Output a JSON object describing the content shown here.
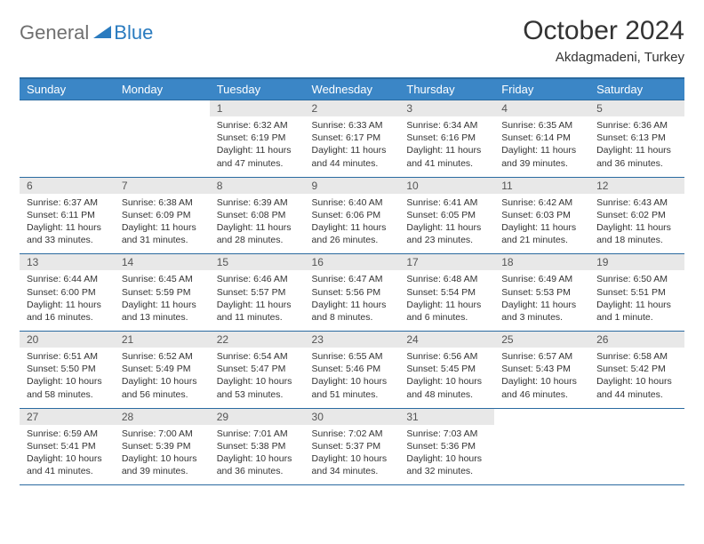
{
  "logo": {
    "part1": "General",
    "part2": "Blue"
  },
  "title": "October 2024",
  "location": "Akdagmadeni, Turkey",
  "colors": {
    "header_bg": "#3b86c6",
    "header_border": "#2a6aa0",
    "daynum_bg": "#e8e8e8",
    "text": "#333333",
    "logo_gray": "#6f6f6f",
    "logo_blue": "#2a7bbf"
  },
  "weekdays": [
    "Sunday",
    "Monday",
    "Tuesday",
    "Wednesday",
    "Thursday",
    "Friday",
    "Saturday"
  ],
  "weeks": [
    [
      {
        "empty": true
      },
      {
        "empty": true
      },
      {
        "n": "1",
        "sr": "6:32 AM",
        "ss": "6:19 PM",
        "dl": "11 hours and 47 minutes."
      },
      {
        "n": "2",
        "sr": "6:33 AM",
        "ss": "6:17 PM",
        "dl": "11 hours and 44 minutes."
      },
      {
        "n": "3",
        "sr": "6:34 AM",
        "ss": "6:16 PM",
        "dl": "11 hours and 41 minutes."
      },
      {
        "n": "4",
        "sr": "6:35 AM",
        "ss": "6:14 PM",
        "dl": "11 hours and 39 minutes."
      },
      {
        "n": "5",
        "sr": "6:36 AM",
        "ss": "6:13 PM",
        "dl": "11 hours and 36 minutes."
      }
    ],
    [
      {
        "n": "6",
        "sr": "6:37 AM",
        "ss": "6:11 PM",
        "dl": "11 hours and 33 minutes."
      },
      {
        "n": "7",
        "sr": "6:38 AM",
        "ss": "6:09 PM",
        "dl": "11 hours and 31 minutes."
      },
      {
        "n": "8",
        "sr": "6:39 AM",
        "ss": "6:08 PM",
        "dl": "11 hours and 28 minutes."
      },
      {
        "n": "9",
        "sr": "6:40 AM",
        "ss": "6:06 PM",
        "dl": "11 hours and 26 minutes."
      },
      {
        "n": "10",
        "sr": "6:41 AM",
        "ss": "6:05 PM",
        "dl": "11 hours and 23 minutes."
      },
      {
        "n": "11",
        "sr": "6:42 AM",
        "ss": "6:03 PM",
        "dl": "11 hours and 21 minutes."
      },
      {
        "n": "12",
        "sr": "6:43 AM",
        "ss": "6:02 PM",
        "dl": "11 hours and 18 minutes."
      }
    ],
    [
      {
        "n": "13",
        "sr": "6:44 AM",
        "ss": "6:00 PM",
        "dl": "11 hours and 16 minutes."
      },
      {
        "n": "14",
        "sr": "6:45 AM",
        "ss": "5:59 PM",
        "dl": "11 hours and 13 minutes."
      },
      {
        "n": "15",
        "sr": "6:46 AM",
        "ss": "5:57 PM",
        "dl": "11 hours and 11 minutes."
      },
      {
        "n": "16",
        "sr": "6:47 AM",
        "ss": "5:56 PM",
        "dl": "11 hours and 8 minutes."
      },
      {
        "n": "17",
        "sr": "6:48 AM",
        "ss": "5:54 PM",
        "dl": "11 hours and 6 minutes."
      },
      {
        "n": "18",
        "sr": "6:49 AM",
        "ss": "5:53 PM",
        "dl": "11 hours and 3 minutes."
      },
      {
        "n": "19",
        "sr": "6:50 AM",
        "ss": "5:51 PM",
        "dl": "11 hours and 1 minute."
      }
    ],
    [
      {
        "n": "20",
        "sr": "6:51 AM",
        "ss": "5:50 PM",
        "dl": "10 hours and 58 minutes."
      },
      {
        "n": "21",
        "sr": "6:52 AM",
        "ss": "5:49 PM",
        "dl": "10 hours and 56 minutes."
      },
      {
        "n": "22",
        "sr": "6:54 AM",
        "ss": "5:47 PM",
        "dl": "10 hours and 53 minutes."
      },
      {
        "n": "23",
        "sr": "6:55 AM",
        "ss": "5:46 PM",
        "dl": "10 hours and 51 minutes."
      },
      {
        "n": "24",
        "sr": "6:56 AM",
        "ss": "5:45 PM",
        "dl": "10 hours and 48 minutes."
      },
      {
        "n": "25",
        "sr": "6:57 AM",
        "ss": "5:43 PM",
        "dl": "10 hours and 46 minutes."
      },
      {
        "n": "26",
        "sr": "6:58 AM",
        "ss": "5:42 PM",
        "dl": "10 hours and 44 minutes."
      }
    ],
    [
      {
        "n": "27",
        "sr": "6:59 AM",
        "ss": "5:41 PM",
        "dl": "10 hours and 41 minutes."
      },
      {
        "n": "28",
        "sr": "7:00 AM",
        "ss": "5:39 PM",
        "dl": "10 hours and 39 minutes."
      },
      {
        "n": "29",
        "sr": "7:01 AM",
        "ss": "5:38 PM",
        "dl": "10 hours and 36 minutes."
      },
      {
        "n": "30",
        "sr": "7:02 AM",
        "ss": "5:37 PM",
        "dl": "10 hours and 34 minutes."
      },
      {
        "n": "31",
        "sr": "7:03 AM",
        "ss": "5:36 PM",
        "dl": "10 hours and 32 minutes."
      },
      {
        "empty": true
      },
      {
        "empty": true
      }
    ]
  ],
  "labels": {
    "sunrise": "Sunrise:",
    "sunset": "Sunset:",
    "daylight": "Daylight:"
  }
}
